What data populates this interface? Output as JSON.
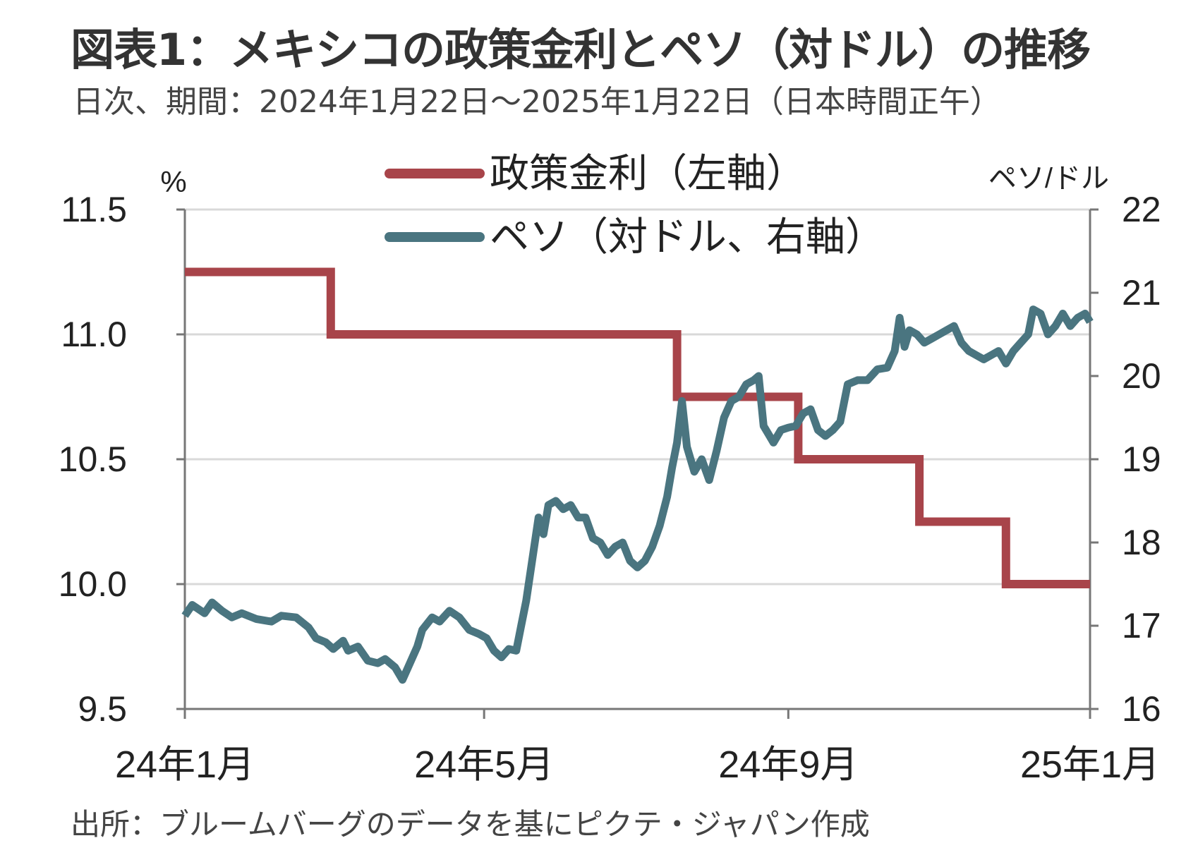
{
  "title": "図表1：メキシコの政策金利とペソ（対ドル）の推移",
  "subtitle": "日次、期間：2024年1月22日～2025年1月22日（日本時間正午）",
  "source": "出所：ブルームバーグのデータを基にピクテ・ジャパン作成",
  "colors": {
    "policy_rate": "#A8444A",
    "peso": "#4A7580",
    "grid": "#d9d9d9",
    "axis": "#777777"
  },
  "chart_data": {
    "type": "line",
    "left_axis": {
      "unit_label": "%",
      "ylim": [
        9.5,
        11.5
      ],
      "ticks": [
        "9.5",
        "10.0",
        "10.5",
        "11.0",
        "11.5"
      ]
    },
    "right_axis": {
      "unit_label": "ペソ/ドル",
      "ylim": [
        16,
        22
      ],
      "ticks": [
        "16",
        "17",
        "18",
        "19",
        "20",
        "21",
        "22"
      ]
    },
    "x_axis": {
      "range": [
        "2024-01-22",
        "2025-01-22"
      ],
      "ticks": [
        {
          "date": "2024-01-22",
          "label": "24年1月"
        },
        {
          "date": "2024-05-22",
          "label": "24年5月"
        },
        {
          "date": "2024-09-22",
          "label": "24年9月"
        },
        {
          "date": "2025-01-22",
          "label": "25年1月"
        }
      ]
    },
    "legend": {
      "placement": "top-center"
    },
    "series": [
      {
        "name": "政策金利（左軸）",
        "axis": "left",
        "step": true,
        "points": [
          [
            "2024-01-22",
            11.25
          ],
          [
            "2024-03-21",
            11.0
          ],
          [
            "2024-08-08",
            10.75
          ],
          [
            "2024-09-26",
            10.5
          ],
          [
            "2024-11-14",
            10.25
          ],
          [
            "2024-12-19",
            10.0
          ],
          [
            "2025-01-22",
            10.0
          ]
        ]
      },
      {
        "name": "ペソ（対ドル、右軸）",
        "axis": "right",
        "step": false,
        "points": [
          [
            "2024-01-22",
            17.12
          ],
          [
            "2024-01-25",
            17.25
          ],
          [
            "2024-01-30",
            17.15
          ],
          [
            "2024-02-02",
            17.28
          ],
          [
            "2024-02-06",
            17.18
          ],
          [
            "2024-02-10",
            17.1
          ],
          [
            "2024-02-14",
            17.15
          ],
          [
            "2024-02-20",
            17.08
          ],
          [
            "2024-02-26",
            17.05
          ],
          [
            "2024-03-01",
            17.12
          ],
          [
            "2024-03-07",
            17.1
          ],
          [
            "2024-03-12",
            16.98
          ],
          [
            "2024-03-15",
            16.85
          ],
          [
            "2024-03-19",
            16.8
          ],
          [
            "2024-03-22",
            16.72
          ],
          [
            "2024-03-26",
            16.82
          ],
          [
            "2024-03-28",
            16.7
          ],
          [
            "2024-04-01",
            16.75
          ],
          [
            "2024-04-05",
            16.58
          ],
          [
            "2024-04-09",
            16.55
          ],
          [
            "2024-04-12",
            16.6
          ],
          [
            "2024-04-16",
            16.5
          ],
          [
            "2024-04-19",
            16.35
          ],
          [
            "2024-04-22",
            16.55
          ],
          [
            "2024-04-25",
            16.75
          ],
          [
            "2024-04-27",
            16.95
          ],
          [
            "2024-05-01",
            17.1
          ],
          [
            "2024-05-04",
            17.05
          ],
          [
            "2024-05-08",
            17.18
          ],
          [
            "2024-05-12",
            17.1
          ],
          [
            "2024-05-16",
            16.95
          ],
          [
            "2024-05-20",
            16.9
          ],
          [
            "2024-05-23",
            16.85
          ],
          [
            "2024-05-26",
            16.7
          ],
          [
            "2024-05-29",
            16.62
          ],
          [
            "2024-06-01",
            16.72
          ],
          [
            "2024-06-04",
            16.7
          ],
          [
            "2024-06-06",
            17.0
          ],
          [
            "2024-06-08",
            17.3
          ],
          [
            "2024-06-11",
            17.9
          ],
          [
            "2024-06-13",
            18.3
          ],
          [
            "2024-06-15",
            18.1
          ],
          [
            "2024-06-17",
            18.45
          ],
          [
            "2024-06-20",
            18.5
          ],
          [
            "2024-06-23",
            18.4
          ],
          [
            "2024-06-26",
            18.45
          ],
          [
            "2024-06-29",
            18.3
          ],
          [
            "2024-07-02",
            18.3
          ],
          [
            "2024-07-05",
            18.05
          ],
          [
            "2024-07-08",
            18.0
          ],
          [
            "2024-07-11",
            17.85
          ],
          [
            "2024-07-14",
            17.95
          ],
          [
            "2024-07-17",
            18.0
          ],
          [
            "2024-07-20",
            17.78
          ],
          [
            "2024-07-23",
            17.7
          ],
          [
            "2024-07-26",
            17.78
          ],
          [
            "2024-07-29",
            17.95
          ],
          [
            "2024-08-01",
            18.2
          ],
          [
            "2024-08-04",
            18.55
          ],
          [
            "2024-08-06",
            18.9
          ],
          [
            "2024-08-08",
            19.2
          ],
          [
            "2024-08-10",
            19.7
          ],
          [
            "2024-08-12",
            19.15
          ],
          [
            "2024-08-15",
            18.85
          ],
          [
            "2024-08-18",
            19.0
          ],
          [
            "2024-08-21",
            18.75
          ],
          [
            "2024-08-24",
            19.1
          ],
          [
            "2024-08-27",
            19.5
          ],
          [
            "2024-08-30",
            19.7
          ],
          [
            "2024-09-02",
            19.75
          ],
          [
            "2024-09-05",
            19.9
          ],
          [
            "2024-09-08",
            19.95
          ],
          [
            "2024-09-10",
            20.0
          ],
          [
            "2024-09-12",
            19.4
          ],
          [
            "2024-09-14",
            19.3
          ],
          [
            "2024-09-16",
            19.2
          ],
          [
            "2024-09-19",
            19.35
          ],
          [
            "2024-09-22",
            19.38
          ],
          [
            "2024-09-25",
            19.4
          ],
          [
            "2024-09-28",
            19.55
          ],
          [
            "2024-10-01",
            19.6
          ],
          [
            "2024-10-04",
            19.35
          ],
          [
            "2024-10-07",
            19.28
          ],
          [
            "2024-10-10",
            19.35
          ],
          [
            "2024-10-13",
            19.45
          ],
          [
            "2024-10-16",
            19.9
          ],
          [
            "2024-10-20",
            19.95
          ],
          [
            "2024-10-24",
            19.95
          ],
          [
            "2024-10-28",
            20.08
          ],
          [
            "2024-11-01",
            20.1
          ],
          [
            "2024-11-04",
            20.3
          ],
          [
            "2024-11-06",
            20.7
          ],
          [
            "2024-11-08",
            20.35
          ],
          [
            "2024-11-10",
            20.55
          ],
          [
            "2024-11-13",
            20.5
          ],
          [
            "2024-11-16",
            20.4
          ],
          [
            "2024-11-19",
            20.45
          ],
          [
            "2024-11-22",
            20.5
          ],
          [
            "2024-11-25",
            20.55
          ],
          [
            "2024-11-28",
            20.6
          ],
          [
            "2024-12-01",
            20.4
          ],
          [
            "2024-12-04",
            20.3
          ],
          [
            "2024-12-07",
            20.25
          ],
          [
            "2024-12-10",
            20.2
          ],
          [
            "2024-12-13",
            20.25
          ],
          [
            "2024-12-16",
            20.3
          ],
          [
            "2024-12-19",
            20.15
          ],
          [
            "2024-12-22",
            20.3
          ],
          [
            "2024-12-25",
            20.4
          ],
          [
            "2024-12-28",
            20.5
          ],
          [
            "2024-12-30",
            20.8
          ],
          [
            "2025-01-02",
            20.75
          ],
          [
            "2025-01-05",
            20.5
          ],
          [
            "2025-01-08",
            20.6
          ],
          [
            "2025-01-11",
            20.75
          ],
          [
            "2025-01-14",
            20.6
          ],
          [
            "2025-01-17",
            20.7
          ],
          [
            "2025-01-20",
            20.75
          ],
          [
            "2025-01-22",
            20.65
          ]
        ]
      }
    ]
  }
}
